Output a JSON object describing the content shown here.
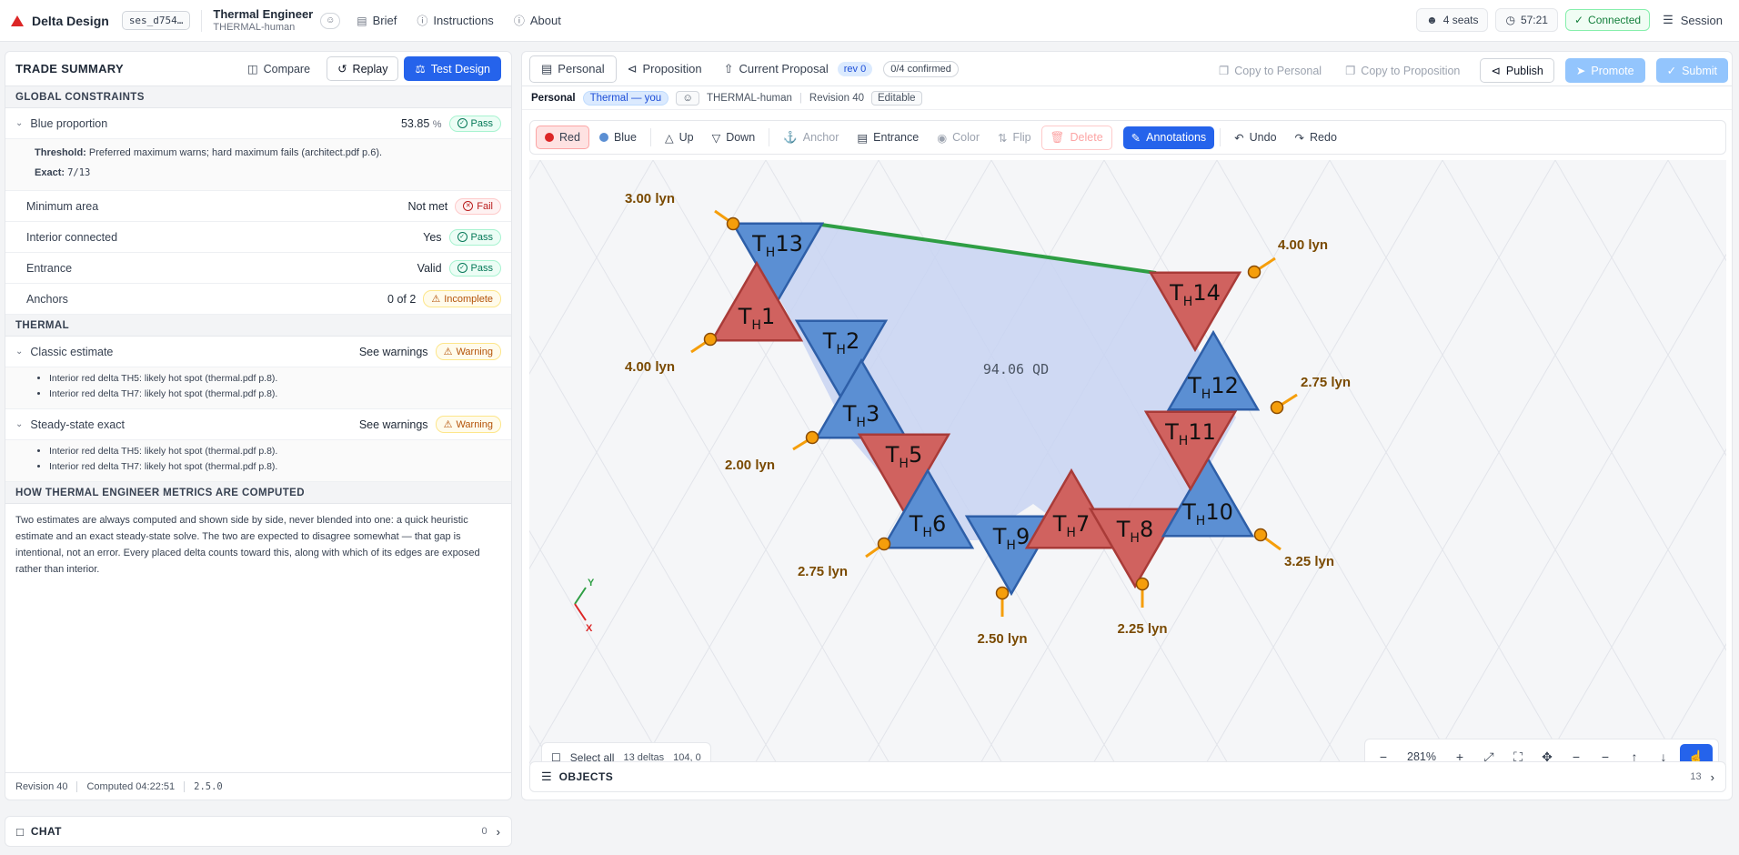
{
  "app": {
    "name": "Delta Design",
    "session_id": "ses_d754…",
    "role_title": "Thermal Engineer",
    "role_sub": "THERMAL-human"
  },
  "nav": [
    {
      "label": "Brief",
      "icon": "book-icon"
    },
    {
      "label": "Instructions",
      "icon": "help-circle-icon"
    },
    {
      "label": "About",
      "icon": "info-icon"
    }
  ],
  "topright": {
    "seats": "4 seats",
    "timer": "57:21",
    "status": "Connected",
    "session": "Session"
  },
  "summary": {
    "title": "TRADE SUMMARY",
    "compare": "Compare",
    "replay": "Replay",
    "test": "Test Design",
    "global_title": "GLOBAL CONSTRAINTS",
    "blue": {
      "label": "Blue proportion",
      "value": "53.85",
      "unit": "%",
      "status": "Pass",
      "threshold_label": "Threshold:",
      "threshold_text": "Preferred maximum warns; hard maximum fails (architect.pdf p.6).",
      "exact_label": "Exact:",
      "exact_value": "7/13"
    },
    "rows": [
      {
        "label": "Minimum area",
        "value": "Not met",
        "status": "Fail",
        "kind": "fail"
      },
      {
        "label": "Interior connected",
        "value": "Yes",
        "status": "Pass",
        "kind": "pass"
      },
      {
        "label": "Entrance",
        "value": "Valid",
        "status": "Pass",
        "kind": "pass"
      },
      {
        "label": "Anchors",
        "value": "0 of 2",
        "status": "Incomplete",
        "kind": "warn"
      }
    ],
    "thermal_title": "THERMAL",
    "classic": {
      "label": "Classic estimate",
      "value": "See warnings",
      "status": "Warning",
      "bullets": [
        "Interior red delta TH5: likely hot spot (thermal.pdf p.8).",
        "Interior red delta TH7: likely hot spot (thermal.pdf p.8)."
      ]
    },
    "steady": {
      "label": "Steady-state exact",
      "value": "See warnings",
      "status": "Warning",
      "bullets": [
        "Interior red delta TH5: likely hot spot (thermal.pdf p.8).",
        "Interior red delta TH7: likely hot spot (thermal.pdf p.8)."
      ]
    },
    "how_title": "HOW THERMAL ENGINEER METRICS ARE COMPUTED",
    "how_text": "Two estimates are always computed and shown side by side, never blended into one: a quick heuristic estimate and an exact steady-state solve. The two are expected to disagree somewhat — that gap is intentional, not an error. Every placed delta counts toward this, along with which of its edges are exposed rather than interior.",
    "footer": {
      "revision": "Revision 40",
      "computed": "Computed 04:22:51",
      "version": "2.5.0"
    }
  },
  "chat": {
    "label": "CHAT",
    "count": "0"
  },
  "tabs": {
    "personal": "Personal",
    "proposition": "Proposition",
    "current": "Current Proposal",
    "rev": "rev 0",
    "confirmed": "0/4 confirmed"
  },
  "actions": {
    "copy_personal": "Copy to Personal",
    "copy_prop": "Copy to Proposition",
    "publish": "Publish",
    "promote": "Promote",
    "submit": "Submit"
  },
  "crumbs": {
    "space": "Personal",
    "owner": "Thermal — you",
    "user": "THERMAL-human",
    "revision": "Revision 40",
    "mode": "Editable"
  },
  "tools": {
    "red": "Red",
    "blue": "Blue",
    "up": "Up",
    "down": "Down",
    "anchor": "Anchor",
    "entrance": "Entrance",
    "color": "Color",
    "flip": "Flip",
    "delete": "Delete",
    "annotations": "Annotations",
    "undo": "Undo",
    "redo": "Redo"
  },
  "colors": {
    "red": "#d0625f",
    "blue": "#5b8fd3",
    "accent": "#2563eb",
    "green": "#2e9e44",
    "label": "#7a4a00"
  },
  "canvas": {
    "area_label": "94.06 QD",
    "deltas": [
      {
        "id": "13",
        "color": "blue",
        "dir": "down"
      },
      {
        "id": "1",
        "color": "red",
        "dir": "up"
      },
      {
        "id": "2",
        "color": "blue",
        "dir": "down"
      },
      {
        "id": "3",
        "color": "blue",
        "dir": "up"
      },
      {
        "id": "5",
        "color": "red",
        "dir": "down"
      },
      {
        "id": "6",
        "color": "blue",
        "dir": "up"
      },
      {
        "id": "9",
        "color": "blue",
        "dir": "down"
      },
      {
        "id": "7",
        "color": "red",
        "dir": "up"
      },
      {
        "id": "8",
        "color": "red",
        "dir": "down"
      },
      {
        "id": "10",
        "color": "blue",
        "dir": "up"
      },
      {
        "id": "11",
        "color": "red",
        "dir": "down"
      },
      {
        "id": "12",
        "color": "blue",
        "dir": "up"
      },
      {
        "id": "14",
        "color": "red",
        "dir": "down"
      }
    ],
    "edge_labels": [
      "3.00 lyn",
      "4.00 lyn",
      "2.00 lyn",
      "2.75 lyn",
      "2.50 lyn",
      "2.25 lyn",
      "3.25 lyn",
      "2.75 lyn",
      "4.00 lyn"
    ],
    "axis_y": "Y",
    "axis_x": "X"
  },
  "selection": {
    "label": "Select all",
    "count": "13 deltas",
    "coords": "104, 0"
  },
  "zoom": {
    "level": "281%"
  },
  "objects": {
    "label": "OBJECTS",
    "count": "13"
  }
}
